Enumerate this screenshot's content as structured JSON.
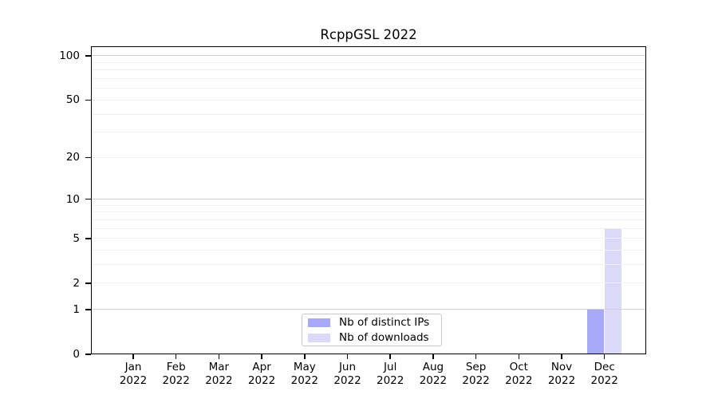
{
  "chart_data": {
    "type": "bar",
    "title": "RcppGSL 2022",
    "x_categories": [
      {
        "month": "Jan",
        "year": "2022"
      },
      {
        "month": "Feb",
        "year": "2022"
      },
      {
        "month": "Mar",
        "year": "2022"
      },
      {
        "month": "Apr",
        "year": "2022"
      },
      {
        "month": "May",
        "year": "2022"
      },
      {
        "month": "Jun",
        "year": "2022"
      },
      {
        "month": "Jul",
        "year": "2022"
      },
      {
        "month": "Aug",
        "year": "2022"
      },
      {
        "month": "Sep",
        "year": "2022"
      },
      {
        "month": "Oct",
        "year": "2022"
      },
      {
        "month": "Nov",
        "year": "2022"
      },
      {
        "month": "Dec",
        "year": "2022"
      }
    ],
    "series": [
      {
        "name": "Nb of distinct IPs",
        "color": "#a8a8f8",
        "values": [
          0,
          0,
          0,
          0,
          0,
          0,
          0,
          0,
          0,
          0,
          0,
          1
        ]
      },
      {
        "name": "Nb of downloads",
        "color": "#dadaf8",
        "values": [
          0,
          0,
          0,
          0,
          0,
          0,
          0,
          0,
          0,
          0,
          0,
          6
        ]
      }
    ],
    "y_axis": {
      "scale": "log1p",
      "ticks": [
        0,
        1,
        2,
        5,
        10,
        20,
        50,
        100
      ]
    },
    "gridlines": {
      "major": [
        1,
        10,
        100
      ],
      "minor": [
        2,
        3,
        4,
        5,
        6,
        7,
        8,
        9,
        20,
        30,
        40,
        50,
        60,
        70,
        80,
        90
      ],
      "major_color": "#d2d2d2",
      "minor_color": "#f0f0f0"
    },
    "legend": {
      "position": "bottom-center"
    },
    "grid": "horizontal",
    "background": "#ffffff"
  }
}
